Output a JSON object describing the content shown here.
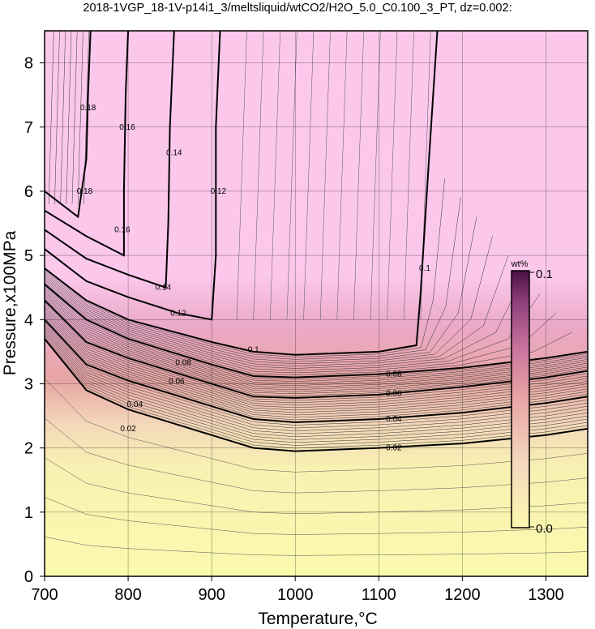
{
  "chart_data": {
    "type": "contour",
    "title": "2018-1VGP_18-1V-p14i1_3/meltsliquid/wtCO2/H2O_5.0_C0.100_3_PT, dz=0.002:",
    "xlabel": "Temperature,°C",
    "ylabel": "Pressure,x100MPa",
    "xlim": [
      700,
      1350
    ],
    "ylim": [
      0,
      8.5
    ],
    "xticks": [
      "700",
      "800",
      "900",
      "1000",
      "1100",
      "1200",
      "1300"
    ],
    "yticks": [
      "0",
      "1",
      "2",
      "3",
      "4",
      "5",
      "6",
      "7",
      "8"
    ],
    "grid": true,
    "colorbar": {
      "unit": "wt%",
      "min_label": "0.0",
      "max_label": "0.1",
      "colors": [
        "#fbf8ae",
        "#f4d8bd",
        "#e9a6a6",
        "#c9739e",
        "#8e3f7a",
        "#4a1040"
      ]
    },
    "contours": [
      {
        "level": 0.02,
        "label": "0.02",
        "points": [
          [
            700,
            3.7
          ],
          [
            750,
            2.9
          ],
          [
            800,
            2.6
          ],
          [
            900,
            2.2
          ],
          [
            950,
            2.0
          ],
          [
            1000,
            1.95
          ],
          [
            1100,
            2.0
          ],
          [
            1200,
            2.07
          ],
          [
            1300,
            2.2
          ],
          [
            1350,
            2.3
          ]
        ],
        "label_at": [
          [
            800,
            2.3
          ],
          [
            1118,
            2.0
          ]
        ]
      },
      {
        "level": 0.04,
        "label": "0.04",
        "points": [
          [
            700,
            4.0
          ],
          [
            750,
            3.3
          ],
          [
            800,
            3.05
          ],
          [
            900,
            2.65
          ],
          [
            950,
            2.45
          ],
          [
            1000,
            2.4
          ],
          [
            1100,
            2.45
          ],
          [
            1200,
            2.55
          ],
          [
            1300,
            2.7
          ],
          [
            1350,
            2.8
          ]
        ],
        "label_at": [
          [
            808,
            2.68
          ],
          [
            1118,
            2.45
          ]
        ]
      },
      {
        "level": 0.06,
        "label": "0.06",
        "points": [
          [
            700,
            4.3
          ],
          [
            750,
            3.65
          ],
          [
            800,
            3.4
          ],
          [
            900,
            3.0
          ],
          [
            950,
            2.8
          ],
          [
            1000,
            2.78
          ],
          [
            1100,
            2.83
          ],
          [
            1200,
            2.95
          ],
          [
            1300,
            3.1
          ],
          [
            1350,
            3.2
          ]
        ],
        "label_at": [
          [
            858,
            3.04
          ],
          [
            1118,
            2.85
          ]
        ]
      },
      {
        "level": 0.08,
        "label": "0.08",
        "points": [
          [
            700,
            4.55
          ],
          [
            750,
            4.0
          ],
          [
            800,
            3.7
          ],
          [
            900,
            3.3
          ],
          [
            950,
            3.12
          ],
          [
            1000,
            3.1
          ],
          [
            1100,
            3.15
          ],
          [
            1200,
            3.25
          ],
          [
            1300,
            3.4
          ],
          [
            1350,
            3.5
          ]
        ],
        "label_at": [
          [
            866,
            3.33
          ],
          [
            1118,
            3.15
          ]
        ]
      },
      {
        "level": 0.1,
        "label": "0.1",
        "points": [
          [
            700,
            4.8
          ],
          [
            750,
            4.3
          ],
          [
            800,
            4.0
          ],
          [
            900,
            3.65
          ],
          [
            950,
            3.5
          ],
          [
            1000,
            3.45
          ],
          [
            1100,
            3.5
          ],
          [
            1145,
            3.6
          ],
          [
            1150,
            4.4
          ],
          [
            1160,
            6.5
          ],
          [
            1170,
            8.5
          ]
        ],
        "label_at": [
          [
            950,
            3.53
          ],
          [
            1155,
            4.8
          ]
        ]
      },
      {
        "level": 0.12,
        "label": "0.12",
        "points": [
          [
            700,
            5.1
          ],
          [
            750,
            4.6
          ],
          [
            800,
            4.35
          ],
          [
            860,
            4.1
          ],
          [
            900,
            4.0
          ],
          [
            905,
            5.0
          ],
          [
            905,
            7.0
          ],
          [
            910,
            8.5
          ]
        ],
        "label_at": [
          [
            860,
            4.1
          ],
          [
            908,
            6.0
          ]
        ]
      },
      {
        "level": 0.14,
        "label": "0.14",
        "points": [
          [
            700,
            5.4
          ],
          [
            750,
            4.95
          ],
          [
            800,
            4.7
          ],
          [
            845,
            4.5
          ],
          [
            848,
            5.5
          ],
          [
            850,
            7.0
          ],
          [
            855,
            8.5
          ]
        ],
        "label_at": [
          [
            842,
            4.5
          ],
          [
            855,
            6.6
          ]
        ]
      },
      {
        "level": 0.16,
        "label": "0.16",
        "points": [
          [
            700,
            5.7
          ],
          [
            750,
            5.3
          ],
          [
            795,
            5.0
          ],
          [
            795,
            6.0
          ],
          [
            797,
            7.5
          ],
          [
            800,
            8.5
          ]
        ],
        "label_at": [
          [
            793,
            5.4
          ],
          [
            799,
            7.0
          ]
        ]
      },
      {
        "level": 0.18,
        "label": "0.18",
        "points": [
          [
            700,
            6.0
          ],
          [
            740,
            5.6
          ],
          [
            750,
            6.5
          ],
          [
            752,
            7.5
          ],
          [
            755,
            8.5
          ]
        ],
        "label_at": [
          [
            748,
            6.0
          ],
          [
            752,
            7.3
          ]
        ]
      }
    ]
  }
}
